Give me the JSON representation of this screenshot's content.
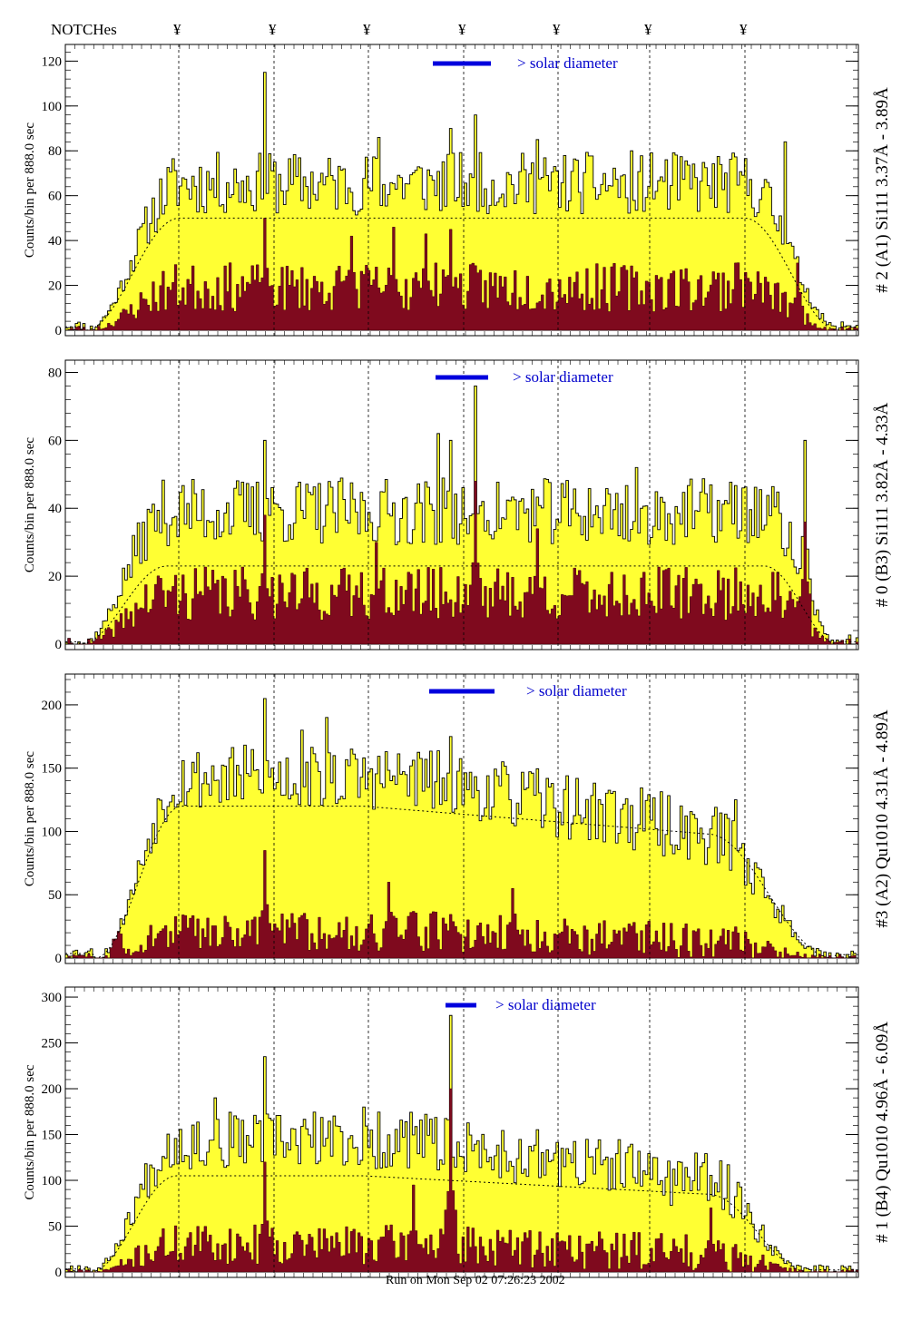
{
  "figure": {
    "notches_label": "NOTCHes",
    "notch_symbol": "¥",
    "notch_count": 7,
    "run_text": "Run on Mon Sep 02 07:26:23 2002",
    "solar_text": "> solar diameter",
    "ylabel_counts": "Counts/bin per",
    "ylabel_time": "888.0 sec",
    "colors": {
      "fill_total": "#ffff33",
      "fill_sub": "#7f0a1e",
      "solar_bar": "#0000dd",
      "axis": "#000000"
    }
  },
  "chart_data": [
    {
      "type": "bar",
      "title": "# 2 (A1) Si111  3.37Å - 3.89Å",
      "ylabel": "Counts/bin per    888.0 sec",
      "ylim": [
        0,
        125
      ],
      "yticks": [
        0,
        20,
        40,
        60,
        80,
        100,
        120
      ],
      "n_bins": 320,
      "envelope": {
        "level": 50,
        "rise_bins": 38,
        "fall_bins": 38,
        "tilt": 0
      },
      "series": [
        {
          "name": "total",
          "baseline": 64,
          "noise": 14,
          "peaks": [
            [
              80,
              115
            ],
            [
              126,
              86
            ],
            [
              155,
              90
            ],
            [
              165,
              96
            ],
            [
              190,
              85
            ],
            [
              228,
              80
            ],
            [
              290,
              84
            ]
          ],
          "seed": 11
        },
        {
          "name": "subset",
          "baseline": 18,
          "noise": 11,
          "peaks": [
            [
              80,
              50
            ],
            [
              115,
              42
            ],
            [
              132,
              46
            ],
            [
              145,
              43
            ],
            [
              155,
              45
            ],
            [
              270,
              30
            ],
            [
              295,
              30
            ]
          ],
          "seed": 23
        }
      ],
      "edges": [
        8,
        312
      ]
    },
    {
      "type": "bar",
      "title": "# 0 (B3) Si111  3.82Å - 4.33Å",
      "ylabel": "Counts/bin per    888.0 sec",
      "ylim": [
        0,
        82
      ],
      "yticks": [
        0,
        20,
        40,
        60,
        80
      ],
      "n_bins": 320,
      "envelope": {
        "level": 23,
        "rise_bins": 35,
        "fall_bins": 30,
        "tilt": 0
      },
      "series": [
        {
          "name": "total",
          "baseline": 38,
          "noise": 10,
          "peaks": [
            [
              80,
              60
            ],
            [
              155,
              60
            ],
            [
              165,
              76
            ],
            [
              150,
              62
            ],
            [
              298,
              60
            ],
            [
              230,
              52
            ]
          ],
          "seed": 37
        },
        {
          "name": "subset",
          "baseline": 14,
          "noise": 8,
          "peaks": [
            [
              80,
              38
            ],
            [
              125,
              30
            ],
            [
              165,
              48
            ],
            [
              190,
              34
            ],
            [
              298,
              36
            ]
          ],
          "seed": 41
        }
      ],
      "edges": [
        6,
        312
      ]
    },
    {
      "type": "bar",
      "title": "#3 (A2) Qu1010  4.31Å - 4.89Å",
      "ylabel": "Counts/bin per    888.0 sec",
      "ylim": [
        0,
        220
      ],
      "yticks": [
        0,
        50,
        100,
        150,
        200
      ],
      "n_bins": 320,
      "envelope": {
        "level": 120,
        "rise_bins": 35,
        "fall_bins": 50,
        "tilt": 60
      },
      "series": [
        {
          "name": "total",
          "baseline": 140,
          "noise": 26,
          "peaks": [
            [
              80,
              205
            ],
            [
              95,
              180
            ],
            [
              105,
              190
            ],
            [
              155,
              175
            ],
            [
              220,
              130
            ],
            [
              270,
              125
            ]
          ],
          "seed": 53
        },
        {
          "name": "subset",
          "baseline": 20,
          "noise": 16,
          "peaks": [
            [
              20,
              55
            ],
            [
              80,
              85
            ],
            [
              130,
              60
            ],
            [
              180,
              55
            ]
          ],
          "seed": 59
        }
      ],
      "edges": [
        12,
        310
      ]
    },
    {
      "type": "bar",
      "title": "# 1 (B4) Qu1010 4.96Å - 6.09Å",
      "ylabel": "Counts/bin per    888.0 sec",
      "ylim": [
        0,
        305
      ],
      "yticks": [
        0,
        50,
        100,
        150,
        200,
        250,
        300
      ],
      "n_bins": 320,
      "envelope": {
        "level": 105,
        "rise_bins": 35,
        "fall_bins": 40,
        "tilt": 55
      },
      "series": [
        {
          "name": "total",
          "baseline": 140,
          "noise": 32,
          "peaks": [
            [
              80,
              235
            ],
            [
              155,
              280
            ],
            [
              120,
              180
            ],
            [
              60,
              190
            ]
          ],
          "seed": 67
        },
        {
          "name": "subset",
          "baseline": 28,
          "noise": 22,
          "peaks": [
            [
              80,
              120
            ],
            [
              155,
              200
            ],
            [
              140,
              95
            ],
            [
              260,
              70
            ]
          ],
          "seed": 71
        }
      ],
      "edges": [
        10,
        300
      ]
    }
  ]
}
